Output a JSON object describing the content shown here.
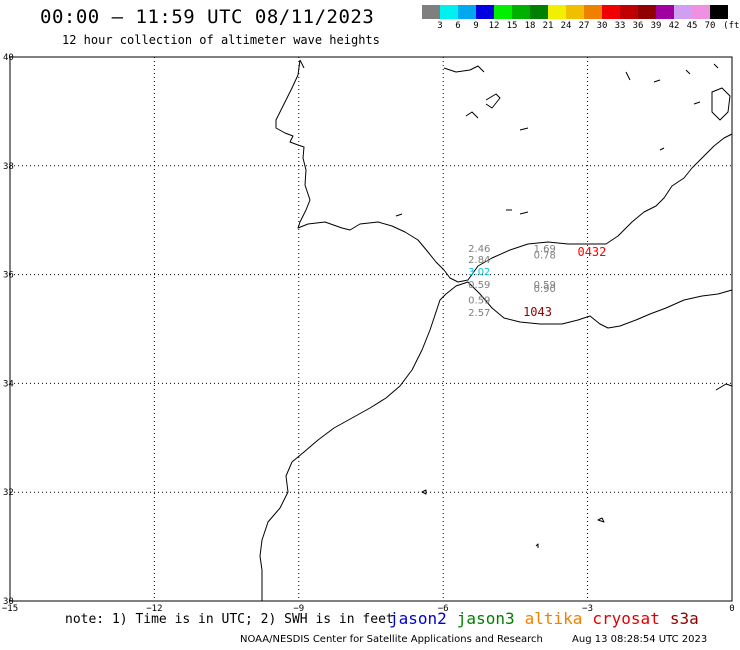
{
  "header": {
    "title": "00:00 – 11:59 UTC 08/11/2023",
    "subtitle": "12 hour collection of altimeter wave heights"
  },
  "colorbar": {
    "unit": "(ft)",
    "labels": [
      "3",
      "6",
      "9",
      "12",
      "15",
      "18",
      "21",
      "24",
      "27",
      "30",
      "33",
      "36",
      "39",
      "42",
      "45",
      "70"
    ],
    "colors": [
      "#7f7f7f",
      "#00f0f0",
      "#00a8f0",
      "#0000e0",
      "#00f000",
      "#00b000",
      "#008000",
      "#f0f000",
      "#f0c000",
      "#f08000",
      "#f00000",
      "#c00000",
      "#900000",
      "#a000a0",
      "#d0a0f0",
      "#f090e0",
      "#000000"
    ]
  },
  "map": {
    "lat_labels": [
      "40",
      "38",
      "36",
      "34",
      "32",
      "30"
    ],
    "lon_labels": [
      "−15",
      "−12",
      "−9",
      "−6",
      "−3",
      "0"
    ],
    "observations": [
      {
        "lon": -5.25,
        "lat": 36.42,
        "value": "2.46",
        "color": "#808080"
      },
      {
        "lon": -3.89,
        "lat": 36.42,
        "value": "1.69",
        "color": "#808080"
      },
      {
        "lon": -3.89,
        "lat": 36.3,
        "value": "0.78",
        "color": "#808080"
      },
      {
        "lon": -5.25,
        "lat": 36.21,
        "value": "2.84",
        "color": "#808080"
      },
      {
        "lon": -5.25,
        "lat": 35.99,
        "value": "3.02",
        "color": "#00c8e0"
      },
      {
        "lon": -5.25,
        "lat": 35.75,
        "value": "0.59",
        "color": "#808080"
      },
      {
        "lon": -5.25,
        "lat": 35.47,
        "value": "0.59",
        "color": "#808080"
      },
      {
        "lon": -5.25,
        "lat": 35.24,
        "value": "2.57",
        "color": "#808080"
      },
      {
        "lon": -3.89,
        "lat": 35.75,
        "value": "0.59",
        "color": "#808080"
      },
      {
        "lon": -3.89,
        "lat": 35.68,
        "value": "0.90",
        "color": "#808080"
      }
    ],
    "passes": [
      {
        "lon": -2.91,
        "lat": 36.34,
        "label": "0432",
        "color": "#ff0000"
      },
      {
        "lon": -4.04,
        "lat": 35.24,
        "label": "1043",
        "color": "#900000"
      }
    ]
  },
  "legend": {
    "note": "note: 1) Time is in UTC; 2) SWH is in feet",
    "satellites": [
      {
        "name": "jason2",
        "color": "#0000d0"
      },
      {
        "name": "jason3",
        "color": "#008000"
      },
      {
        "name": "altika",
        "color": "#f08000"
      },
      {
        "name": "cryosat",
        "color": "#e00000"
      },
      {
        "name": "s3a",
        "color": "#900000"
      }
    ]
  },
  "footer": {
    "credit": "NOAA/NESDIS Center for Satellite Applications and Research",
    "timestamp": "Aug 13 08:28:54 UTC 2023"
  }
}
